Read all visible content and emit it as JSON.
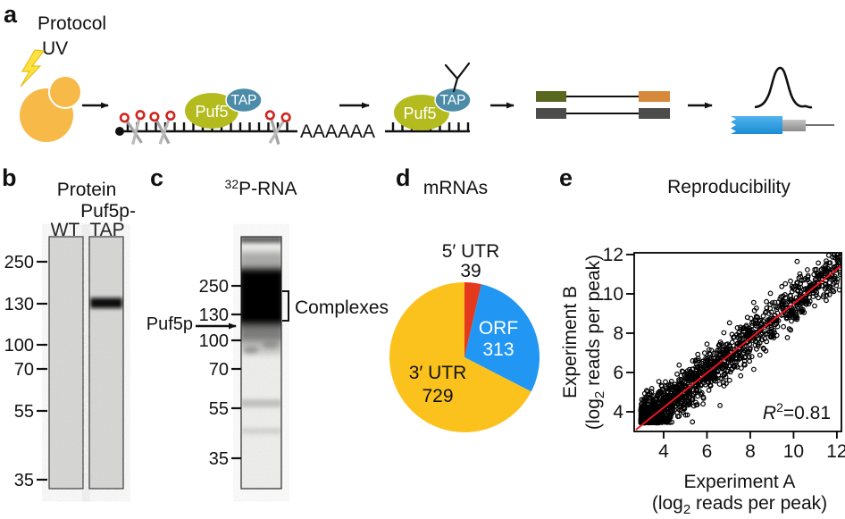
{
  "figure": {
    "panels": {
      "a": {
        "letter": "a",
        "title": "Protocol",
        "uv": "UV",
        "puf5": "Puf5",
        "tap": "TAP",
        "polya": "AAAAAA"
      },
      "b": {
        "letter": "b",
        "title": "Protein",
        "lane_tap_line1": "Puf5p-",
        "lane_wt": "WT",
        "lane_tap_line2": "TAP",
        "markers": [
          "250",
          "130",
          "100",
          "70",
          "55",
          "35"
        ],
        "band_note": "single dark band at ~130 in Puf5p-TAP lane"
      },
      "c": {
        "letter": "c",
        "title_sup": "32",
        "title_rest": "P-RNA",
        "markers": [
          "250",
          "130",
          "100",
          "70",
          "55",
          "35"
        ],
        "protein_label": "Puf5p",
        "complexes_label": "Complexes",
        "band_note": "dark smear of crosslinked complexes between ~130 and ~250"
      },
      "d": {
        "letter": "d",
        "title": "mRNAs"
      },
      "e": {
        "letter": "e",
        "title": "Reproducibility",
        "xlabel": "Experiment A",
        "ylabel": "Experiment B",
        "axis_unit": {
          "pre": "(log",
          "sub": "2",
          "post": " reads per peak)"
        },
        "r2": {
          "R": "R",
          "sup": "2",
          "rest": "=0.81"
        }
      }
    }
  },
  "chart_data": [
    {
      "type": "pie",
      "panel": "d",
      "title": "mRNAs",
      "categories": [
        "5′ UTR",
        "ORF",
        "3′ UTR"
      ],
      "values": [
        39,
        313,
        729
      ],
      "total": 1081,
      "start_angle_deg": 0,
      "direction": "clockwise",
      "slices": [
        {
          "label": "5′ UTR",
          "value": "39",
          "color": "#e4391c",
          "label_color": "#000000",
          "label_position": "outside-top"
        },
        {
          "label": "ORF",
          "value": "313",
          "color": "#2196f3",
          "label_color": "#ffffff",
          "label_position": "inside"
        },
        {
          "label": "3′ UTR",
          "value": "729",
          "color": "#fbc21d",
          "label_color": "#000000",
          "label_position": "inside"
        }
      ]
    },
    {
      "type": "scatter",
      "panel": "e",
      "title": "Reproducibility",
      "xlabel": "Experiment A (log2 reads per peak)",
      "ylabel": "Experiment B (log2 reads per peak)",
      "xlim": [
        2.64,
        12.21
      ],
      "ylim": [
        3.0,
        12.09
      ],
      "xticks": [
        4,
        6,
        8,
        10,
        12
      ],
      "yticks": [
        4,
        6,
        8,
        10,
        12
      ],
      "grid": false,
      "marker": "open-circle",
      "point_color": "#000000",
      "r_squared": 0.81,
      "regression_line": {
        "color": "#f2131d",
        "x1": 2.72,
        "y1": 3.09,
        "x2": 12.17,
        "y2": 11.41
      },
      "points_model": {
        "note": "~1600 binding-site peaks; y ≈ 0.88x + 0.70, gaussian sd 0.58, floor at y≈3.45",
        "n": 1600,
        "seed": 11,
        "x_min": 2.95,
        "x_max": 12.2,
        "x_pow": 2.0,
        "slope": 0.88,
        "intercept": 0.7,
        "noise_sd": 0.58,
        "y_floor": 3.44,
        "y_max": 12.05
      }
    }
  ],
  "colors": {
    "yeast": "#f7ba49",
    "lightning": "#ffe23d",
    "puf5_ellipse": "#b4bb1f",
    "tap_ellipse": "#4c8ca8",
    "scissors_handle": "#ce241b",
    "utr5_red": "#e4391c",
    "orf_blue": "#2196f3",
    "utr3_yellow": "#fbc21d",
    "regression_red": "#f2131d",
    "read_blue": "#2b9fe0",
    "box_green": "#5a671e",
    "box_orange": "#d7893b",
    "box_gray": "#4c4c4a"
  }
}
